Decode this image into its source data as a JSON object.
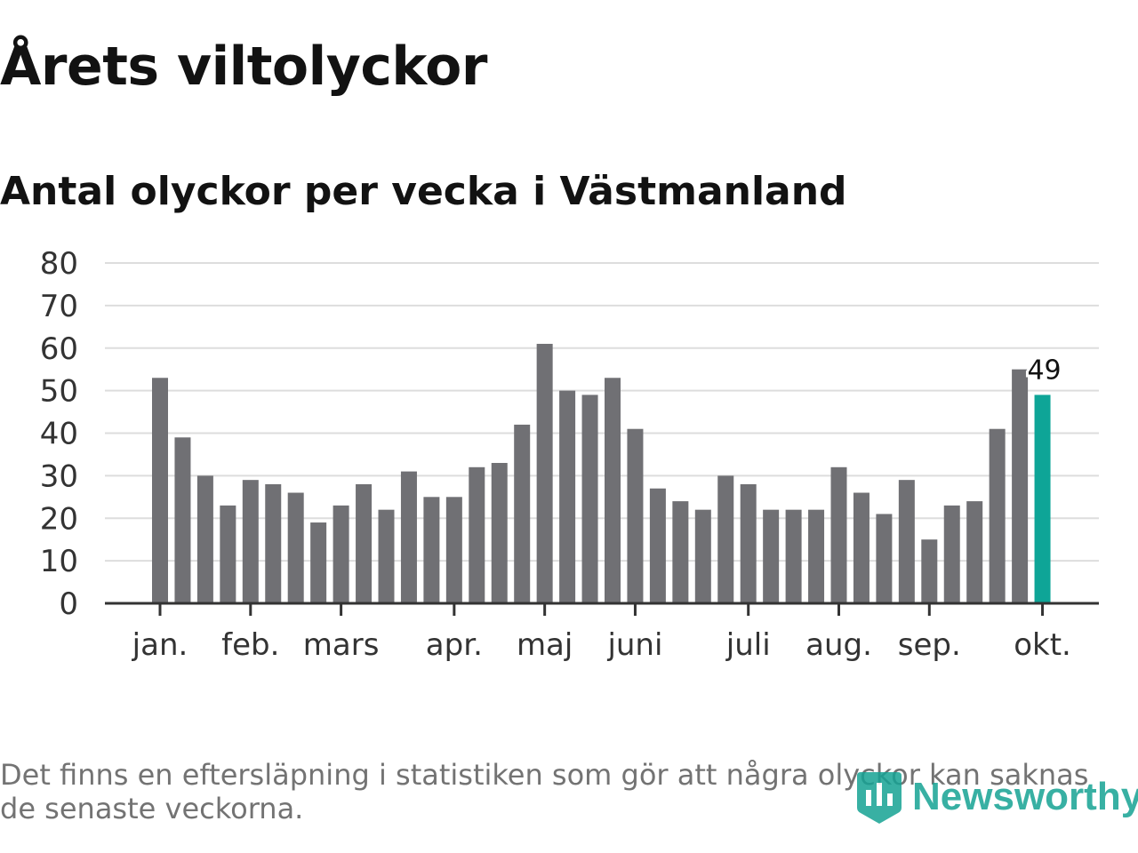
{
  "header": {
    "title": "Årets viltolyckor",
    "subtitle": "Antal olyckor per vecka i Västmanland"
  },
  "footer": {
    "note": "Det finns en eftersläpning i statistiken som gör att några olyckor kan saknas de senaste veckorna.",
    "brand": "Newsworthy"
  },
  "colors": {
    "bar": "#707074",
    "highlight": "#0ea597",
    "grid": "#dddddd",
    "axis": "#333333",
    "text": "#333333"
  },
  "chart_data": {
    "type": "bar",
    "title": "Antal olyckor per vecka i Västmanland",
    "xlabel": "",
    "ylabel": "",
    "ylim": [
      0,
      80
    ],
    "yticks": [
      0,
      10,
      20,
      30,
      40,
      50,
      60,
      70,
      80
    ],
    "grid": true,
    "weeks": [
      1,
      2,
      3,
      4,
      5,
      6,
      7,
      8,
      9,
      10,
      11,
      12,
      13,
      14,
      15,
      16,
      17,
      18,
      19,
      20,
      21,
      22,
      23,
      24,
      25,
      26,
      27,
      28,
      29,
      30,
      31,
      32,
      33,
      34,
      35,
      36,
      37,
      38,
      39,
      40
    ],
    "values": [
      53,
      39,
      30,
      23,
      29,
      28,
      26,
      19,
      23,
      28,
      22,
      31,
      25,
      25,
      32,
      33,
      42,
      61,
      50,
      49,
      53,
      41,
      27,
      24,
      22,
      30,
      28,
      22,
      22,
      22,
      32,
      26,
      21,
      29,
      15,
      23,
      24,
      41,
      55,
      49
    ],
    "highlight_index": 39,
    "highlight_label": "49",
    "month_ticks": [
      {
        "label": "jan.",
        "week": 1
      },
      {
        "label": "feb.",
        "week": 5
      },
      {
        "label": "mars",
        "week": 9
      },
      {
        "label": "apr.",
        "week": 14
      },
      {
        "label": "maj",
        "week": 18
      },
      {
        "label": "juni",
        "week": 22
      },
      {
        "label": "juli",
        "week": 27
      },
      {
        "label": "aug.",
        "week": 31
      },
      {
        "label": "sep.",
        "week": 35
      },
      {
        "label": "okt.",
        "week": 40
      }
    ]
  }
}
